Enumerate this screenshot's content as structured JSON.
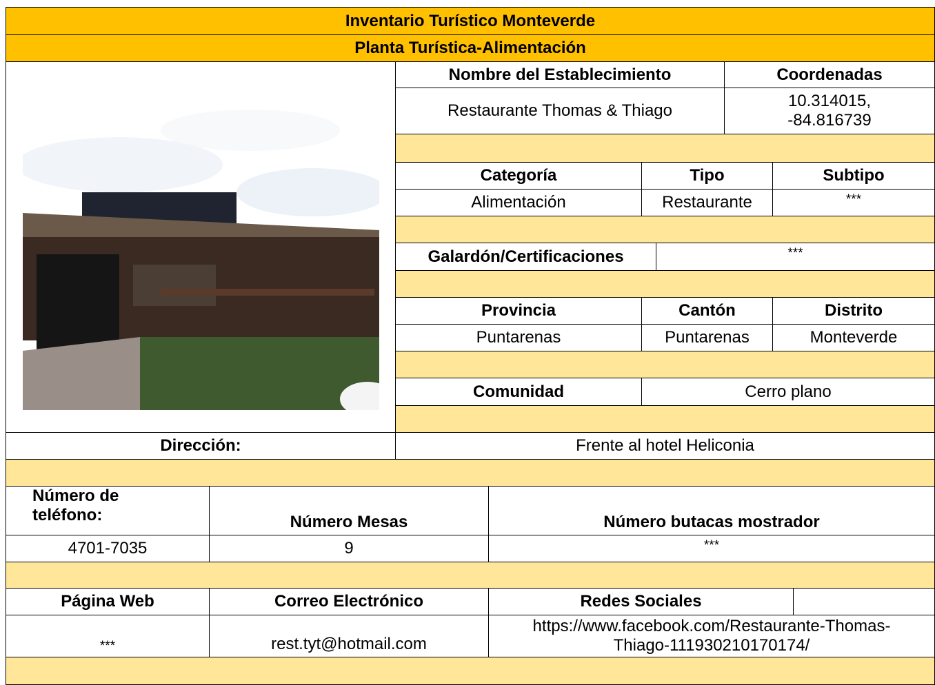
{
  "header": {
    "title": "Inventario Turístico Monteverde",
    "subtitle": "Planta Turística-Alimentación"
  },
  "establishment": {
    "name_label": "Nombre del Establecimiento",
    "coordinates_label": "Coordenadas",
    "name": "Restaurante Thomas & Thiago",
    "coordinates": "10.314015, -84.816739"
  },
  "classification": {
    "category_label": "Categoría",
    "type_label": "Tipo",
    "subtype_label": "Subtipo",
    "category": "Alimentación",
    "type": "Restaurante",
    "subtype": "***"
  },
  "awards": {
    "label": "Galardón/Certificaciones",
    "value": "***"
  },
  "location": {
    "province_label": "Provincia",
    "canton_label": "Cantón",
    "district_label": "Distrito",
    "province": "Puntarenas",
    "canton": "Puntarenas",
    "district": "Monteverde",
    "community_label": "Comunidad",
    "community": "Cerro plano",
    "address_label": "Dirección:",
    "address": "Frente al hotel Heliconia"
  },
  "capacity": {
    "phone_label": "Número de teléfono:",
    "tables_label": "Número Mesas",
    "counter_label": "Número butacas mostrador",
    "phone": "4701-7035",
    "tables": "9",
    "counter": "***"
  },
  "contact": {
    "web_label": "Página Web",
    "email_label": "Correo Electrónico",
    "social_label": "Redes Sociales",
    "web": "***",
    "email": "rest.tyt@hotmail.com",
    "social": "https://www.facebook.com/Restaurante-Thomas-Thiago-111930210170174/"
  }
}
